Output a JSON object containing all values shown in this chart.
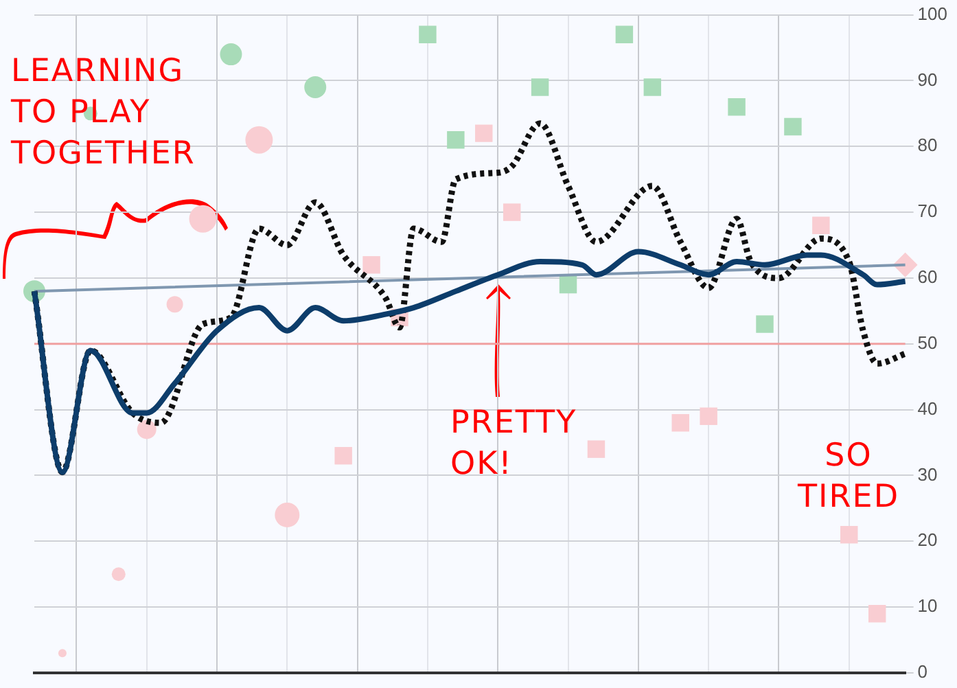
{
  "chart_data": {
    "type": "line",
    "categories": [
      null,
      null,
      null,
      null,
      null,
      null,
      null,
      null,
      null,
      null,
      null,
      null,
      null,
      null,
      null,
      null,
      null,
      null,
      null,
      null,
      null,
      null,
      null,
      null,
      null,
      null,
      null,
      null,
      null,
      null,
      null,
      null,
      null,
      null,
      null,
      null,
      null,
      null,
      null,
      null,
      null,
      null,
      null,
      null,
      null,
      null,
      null,
      null,
      null,
      null,
      null,
      null,
      null,
      null,
      null,
      null,
      null,
      null,
      null,
      null,
      null,
      null,
      null
    ],
    "ylim": [
      0,
      100
    ],
    "yticks": [
      0,
      10,
      20,
      30,
      40,
      50,
      60,
      70,
      80,
      90,
      100
    ],
    "grid": true,
    "tick_labels": "y",
    "series": [
      {
        "type": "bubble",
        "color": "#a8dbb8",
        "values": [
          58,
          null,
          null,
          null,
          85,
          null,
          null,
          null,
          null,
          null,
          null,
          null,
          null,
          null,
          94,
          null,
          null,
          null,
          null,
          null,
          89,
          null,
          null,
          null,
          null,
          null,
          null,
          null,
          null,
          null,
          null,
          null,
          null,
          null,
          null,
          null,
          null,
          null,
          null,
          null,
          null,
          null,
          null,
          null,
          null,
          null,
          null,
          null,
          null,
          null,
          null,
          null,
          null,
          null,
          null,
          null,
          null,
          null,
          null,
          null,
          null,
          null,
          null
        ],
        "sizes": [
          0.64,
          null,
          null,
          null,
          0.25,
          null,
          null,
          null,
          null,
          null,
          null,
          null,
          null,
          null,
          0.64,
          null,
          null,
          null,
          null,
          null,
          0.64,
          null,
          null,
          null,
          null,
          null,
          null,
          null,
          null,
          null,
          null,
          null,
          null,
          null,
          null,
          null,
          null,
          null,
          null,
          null,
          null,
          null,
          null,
          null,
          null,
          null,
          null,
          null,
          null,
          null,
          null,
          null,
          null,
          null,
          null,
          null,
          null,
          null,
          null,
          null,
          null,
          null,
          null
        ]
      },
      {
        "type": "bubble",
        "color": "#f9cdd2",
        "values": [
          null,
          null,
          3,
          null,
          null,
          null,
          15,
          null,
          37,
          null,
          56,
          null,
          69,
          null,
          null,
          null,
          81,
          null,
          24,
          null,
          null,
          null,
          null,
          null,
          null,
          null,
          null,
          null,
          null,
          null,
          null,
          null,
          null,
          null,
          null,
          null,
          null,
          null,
          null,
          null,
          null,
          null,
          null,
          null,
          null,
          null,
          null,
          null,
          null,
          null,
          null,
          null,
          null,
          null,
          null,
          null,
          null,
          null,
          null,
          null,
          null,
          null,
          null
        ],
        "sizes": [
          null,
          null,
          0.09,
          null,
          null,
          null,
          0.25,
          null,
          0.49,
          null,
          0.36,
          null,
          1,
          null,
          null,
          null,
          1,
          null,
          0.81,
          null,
          null,
          null,
          null,
          null,
          null,
          null,
          null,
          null,
          null,
          null,
          null,
          null,
          null,
          null,
          null,
          null,
          null,
          null,
          null,
          null,
          null,
          null,
          null,
          null,
          null,
          null,
          null,
          null,
          null,
          null,
          null,
          null,
          null,
          null,
          null,
          null,
          null,
          null,
          null,
          null,
          null,
          null,
          null
        ]
      },
      {
        "type": "scatter",
        "marker": "square",
        "color": "#a8dbb8",
        "values": [
          null,
          null,
          null,
          null,
          null,
          null,
          null,
          null,
          null,
          null,
          null,
          null,
          null,
          null,
          null,
          null,
          null,
          null,
          null,
          null,
          null,
          null,
          null,
          null,
          null,
          null,
          null,
          null,
          97,
          null,
          81,
          null,
          null,
          null,
          null,
          null,
          89,
          null,
          59,
          null,
          null,
          null,
          97,
          null,
          89,
          null,
          null,
          null,
          null,
          null,
          86,
          null,
          53,
          null,
          83,
          null,
          null,
          null,
          null,
          null,
          null,
          null,
          null
        ]
      },
      {
        "type": "scatter",
        "marker": "square",
        "color": "#f9cdd2",
        "values": [
          null,
          null,
          null,
          null,
          null,
          null,
          null,
          null,
          null,
          null,
          null,
          null,
          null,
          null,
          null,
          null,
          null,
          null,
          null,
          null,
          null,
          null,
          33,
          null,
          62,
          null,
          54,
          null,
          null,
          null,
          null,
          null,
          82,
          null,
          70,
          null,
          null,
          null,
          null,
          null,
          34,
          null,
          null,
          null,
          null,
          null,
          38,
          null,
          39,
          null,
          null,
          null,
          null,
          null,
          null,
          null,
          68,
          null,
          21,
          null,
          9,
          null,
          null
        ]
      },
      {
        "type": "scatter",
        "marker": "diamond",
        "color": "#f9cdd2",
        "values": [
          null,
          null,
          null,
          null,
          null,
          null,
          null,
          null,
          null,
          null,
          null,
          null,
          null,
          null,
          null,
          null,
          null,
          null,
          null,
          null,
          null,
          null,
          null,
          null,
          null,
          null,
          null,
          null,
          null,
          null,
          null,
          null,
          null,
          null,
          null,
          null,
          null,
          null,
          null,
          null,
          null,
          null,
          null,
          null,
          null,
          null,
          null,
          null,
          null,
          null,
          null,
          null,
          null,
          null,
          null,
          null,
          null,
          null,
          null,
          null,
          null,
          null,
          62
        ]
      },
      {
        "color": "#7f97b0",
        "values": [
          58,
          null,
          null,
          null,
          null,
          null,
          null,
          null,
          null,
          null,
          null,
          null,
          null,
          null,
          null,
          null,
          null,
          null,
          null,
          null,
          null,
          null,
          null,
          null,
          null,
          null,
          null,
          null,
          null,
          null,
          null,
          null,
          null,
          null,
          null,
          null,
          null,
          null,
          null,
          null,
          null,
          null,
          null,
          null,
          null,
          null,
          null,
          null,
          null,
          null,
          null,
          null,
          null,
          null,
          null,
          null,
          null,
          null,
          null,
          null,
          null,
          null,
          62
        ]
      },
      {
        "line_style": "dotted",
        "color": "#111111",
        "values": [
          58,
          null,
          30.5,
          null,
          49,
          null,
          null,
          39.5,
          null,
          38,
          null,
          null,
          53,
          null,
          54,
          null,
          67.5,
          null,
          65,
          null,
          71.5,
          null,
          63.5,
          null,
          null,
          57,
          52.5,
          67.5,
          null,
          65.5,
          75,
          null,
          null,
          76,
          77,
          null,
          83.5,
          null,
          74,
          null,
          65.5,
          null,
          null,
          null,
          74,
          null,
          65.5,
          null,
          58.5,
          null,
          69,
          62.5,
          null,
          60,
          null,
          null,
          66,
          null,
          62.5,
          52,
          47,
          null,
          48.5
        ]
      },
      {
        "color": "#0d3d6b",
        "values": [
          58,
          null,
          30.5,
          null,
          49,
          null,
          null,
          39.5,
          39.5,
          null,
          44,
          null,
          null,
          52,
          null,
          null,
          55.5,
          null,
          52,
          null,
          55.5,
          null,
          53.5,
          null,
          null,
          54.5,
          null,
          55.5,
          null,
          null,
          58,
          null,
          null,
          60.5,
          null,
          null,
          62.5,
          null,
          null,
          62,
          60.5,
          null,
          null,
          64,
          null,
          null,
          62,
          null,
          60.5,
          null,
          62.5,
          null,
          62,
          null,
          null,
          63.5,
          63.5,
          null,
          null,
          60.5,
          59,
          null,
          59.5
        ]
      }
    ],
    "ref_lines": [
      {
        "axis": "y",
        "value": 50,
        "color": "#f0a0a0"
      }
    ],
    "annotations": [
      "LEARNING TO PLAY TOGETHER",
      "PRETTY OK!",
      "SO TIRED"
    ]
  }
}
